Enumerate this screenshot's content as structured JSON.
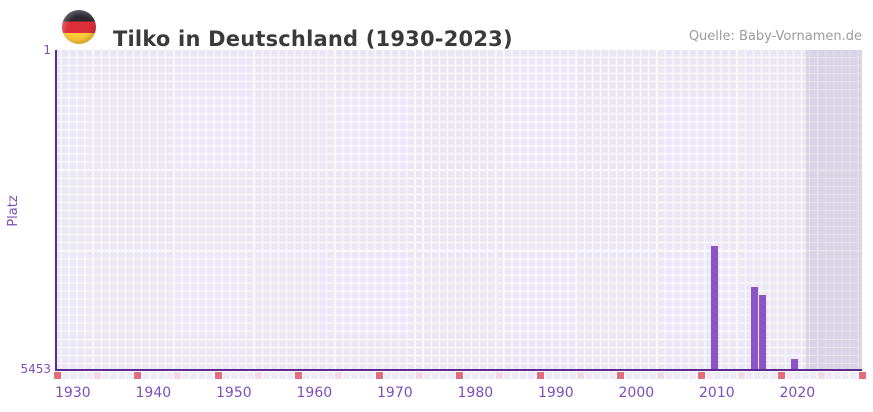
{
  "header": {
    "flag_icon": "germany-flag-icon",
    "title": "Tilko in Deutschland (1930-2023)",
    "source": "Quelle: Baby-Vornamen.de"
  },
  "chart_data": {
    "type": "bar",
    "title": "Tilko in Deutschland (1930-2023)",
    "xlabel": "",
    "ylabel": "Platz",
    "y_axis": {
      "min": 1,
      "max": 5453,
      "inverted": true,
      "tick_labels": [
        "1",
        "5453"
      ]
    },
    "x_axis": {
      "range_start": 1930,
      "range_end": 2030,
      "tick_years": [
        1930,
        1940,
        1950,
        1960,
        1970,
        1980,
        1990,
        2000,
        2010,
        2020
      ],
      "tick_labels": [
        "1930",
        "1940",
        "1950",
        "1960",
        "1970",
        "1980",
        "1990",
        "2000",
        "2010",
        "2020"
      ]
    },
    "bars": [
      {
        "year": 2011,
        "rank": 3345
      },
      {
        "year": 2016,
        "rank": 4045
      },
      {
        "year": 2017,
        "rank": 4180
      },
      {
        "year": 2021,
        "rank": 5280
      }
    ],
    "shaded_future_region": {
      "from_year": 2023,
      "to_year": 2030
    },
    "decade_marker_years": [
      1930,
      1940,
      1950,
      1960,
      1970,
      1980,
      1990,
      2000,
      2010,
      2020,
      2030
    ],
    "half_decade_marker_years": [
      1935,
      1945,
      1955,
      1965,
      1975,
      1985,
      1995,
      2005,
      2015,
      2025
    ],
    "grid": true,
    "legend": null,
    "colors": {
      "bar": "#8b55c5",
      "axis": "#5b2b8f",
      "tick_text": "#7c4fb8",
      "grid_cell": "#ebe7f6",
      "grid_gap": "#ffffff",
      "future_shade": "rgba(171,167,190,0.30)",
      "decade_marker": "#e26d7b",
      "half_decade_marker": "#f3d9e3",
      "neutral_marker": "#efeaf8",
      "title_text": "#3a3a3a",
      "source_text": "#9b9b9b",
      "flag_black": "#2a2730",
      "flag_red": "#dd2f39",
      "flag_gold": "#ffcb38"
    }
  }
}
